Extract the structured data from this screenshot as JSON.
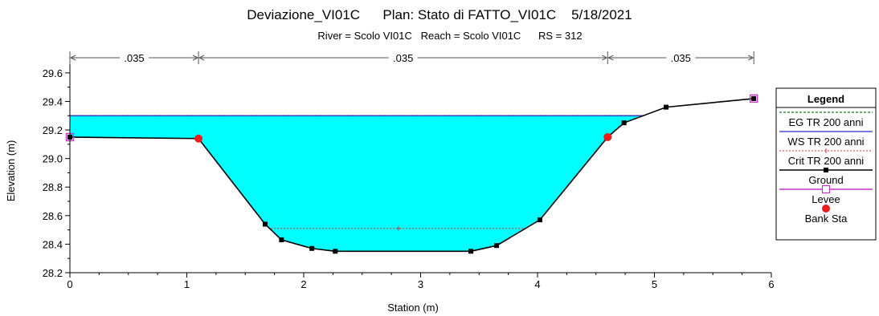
{
  "chart_data": {
    "type": "line",
    "title": "Deviazione_VI01C      Plan: Stato di FATTO_VI01C    5/18/2021",
    "subtitle": "River = Scolo VI01C   Reach = Scolo VI01C      RS = 312",
    "xlabel": "Station (m)",
    "ylabel": "Elevation (m)",
    "xlim": [
      0,
      6
    ],
    "ylim": [
      28.2,
      29.65
    ],
    "x_ticks": [
      "0",
      "1",
      "2",
      "3",
      "4",
      "5",
      "6"
    ],
    "y_ticks": [
      "28.2",
      "28.4",
      "28.6",
      "28.8",
      "29.0",
      "29.2",
      "29.4",
      "29.6"
    ],
    "grid": false,
    "legend_position": "right",
    "legend_title": "Legend",
    "manning_n": [
      {
        "from": 0,
        "to": 1.1,
        "label": ".035"
      },
      {
        "from": 1.1,
        "to": 4.6,
        "label": ".035"
      },
      {
        "from": 4.6,
        "to": 5.85,
        "label": ".035"
      }
    ],
    "series": [
      {
        "name": "EG TR 200 anni",
        "style": "dashed",
        "color": "#1a7a1a",
        "elevation": 29.3
      },
      {
        "name": "WS TR 200 anni",
        "style": "solid",
        "color": "#2a2ad0",
        "elevation": 29.3
      },
      {
        "name": "Crit TR 200 anni",
        "style": "dotted",
        "color": "#e03030",
        "points": [
          [
            1.72,
            28.51
          ],
          [
            3.9,
            28.51
          ]
        ]
      },
      {
        "name": "Ground",
        "style": "solid-marker",
        "color": "#000000",
        "points": [
          [
            0,
            29.15
          ],
          [
            1.1,
            29.14
          ],
          [
            1.67,
            28.54
          ],
          [
            1.81,
            28.43
          ],
          [
            2.07,
            28.37
          ],
          [
            2.27,
            28.35
          ],
          [
            3.43,
            28.35
          ],
          [
            3.65,
            28.39
          ],
          [
            4.02,
            28.57
          ],
          [
            4.6,
            29.15
          ],
          [
            4.74,
            29.25
          ],
          [
            5.1,
            29.36
          ],
          [
            5.85,
            29.42
          ]
        ]
      },
      {
        "name": "Levee",
        "style": "open-square",
        "color": "#cc33cc",
        "points": [
          [
            0,
            29.15
          ],
          [
            5.85,
            29.42
          ]
        ]
      },
      {
        "name": "Bank Sta",
        "style": "circle",
        "color": "#ee1c1c",
        "points": [
          [
            1.1,
            29.14
          ],
          [
            4.6,
            29.15
          ]
        ]
      }
    ],
    "water_fill_color": "#00ffff"
  }
}
